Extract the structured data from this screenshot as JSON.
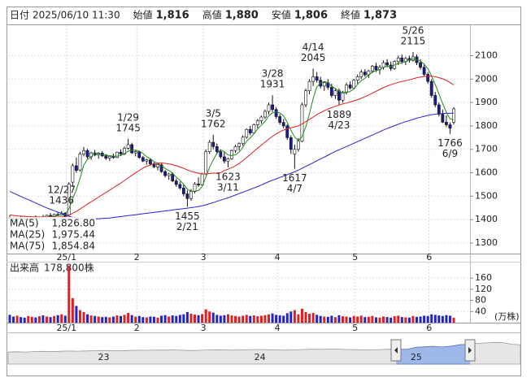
{
  "header": [
    {
      "label": "日付",
      "value": "2025/06/10 11:30"
    },
    {
      "label": "始値",
      "value": "1,816"
    },
    {
      "label": "高値",
      "value": "1,880",
      "color": "#d40000"
    },
    {
      "label": "安値",
      "value": "1,806",
      "color": "#008000"
    },
    {
      "label": "終値",
      "value": "1,873"
    }
  ],
  "chart_data": {
    "type": "candlestick",
    "categories": [
      null,
      null,
      null,
      null,
      null,
      null,
      null,
      null,
      null,
      null,
      null,
      null,
      null,
      null,
      null,
      null,
      "25/1",
      null,
      null,
      null,
      null,
      null,
      null,
      null,
      null,
      null,
      null,
      null,
      null,
      null,
      null,
      null,
      null,
      null,
      null,
      "2",
      null,
      null,
      null,
      null,
      null,
      null,
      null,
      null,
      null,
      null,
      null,
      null,
      null,
      null,
      null,
      null,
      null,
      "3",
      null,
      null,
      null,
      null,
      null,
      null,
      null,
      null,
      null,
      null,
      null,
      null,
      null,
      null,
      null,
      null,
      null,
      null,
      null,
      "4",
      null,
      null,
      null,
      null,
      null,
      null,
      null,
      null,
      null,
      null,
      null,
      null,
      null,
      null,
      null,
      null,
      null,
      null,
      null,
      null,
      "5",
      null,
      null,
      null,
      null,
      null,
      null,
      null,
      null,
      null,
      null,
      null,
      null,
      null,
      null,
      null,
      null,
      null,
      null,
      null,
      "6",
      null,
      null,
      null,
      null,
      null,
      null
    ],
    "open": [
      1410,
      1405,
      1400,
      1408,
      1403,
      1398,
      1402,
      1410,
      1406,
      1412,
      1409,
      1418,
      1415,
      1422,
      1420,
      1428,
      1420,
      1560,
      1630,
      1612,
      1680,
      1695,
      1668,
      1685,
      1676,
      1684,
      1672,
      1662,
      1670,
      1665,
      1688,
      1680,
      1705,
      1720,
      1685,
      1690,
      1665,
      1650,
      1655,
      1638,
      1625,
      1635,
      1605,
      1588,
      1595,
      1565,
      1550,
      1535,
      1510,
      1490,
      1520,
      1552,
      1548,
      1595,
      1690,
      1730,
      1712,
      1690,
      1668,
      1650,
      1660,
      1695,
      1712,
      1725,
      1752,
      1785,
      1770,
      1805,
      1822,
      1838,
      1862,
      1890,
      1870,
      1840,
      1815,
      1800,
      1750,
      1680,
      1700,
      1735,
      1890,
      1950,
      1990,
      2010,
      1995,
      1970,
      1985,
      1965,
      1930,
      1950,
      1910,
      1945,
      1975,
      1962,
      1995,
      2010,
      2030,
      2018,
      2035,
      2055,
      2040,
      2050,
      2070,
      2060,
      2045,
      2075,
      2090,
      2075,
      2088,
      2080,
      2095,
      2070,
      2050,
      2020,
      1990,
      1930,
      1890,
      1850,
      1816,
      1805,
      1816
    ],
    "high": [
      1418,
      1412,
      1410,
      1415,
      1410,
      1406,
      1412,
      1418,
      1414,
      1420,
      1422,
      1428,
      1426,
      1430,
      1436,
      1432,
      1560,
      1640,
      1665,
      1690,
      1710,
      1702,
      1690,
      1698,
      1688,
      1692,
      1680,
      1675,
      1682,
      1690,
      1700,
      1712,
      1745,
      1728,
      1695,
      1694,
      1672,
      1660,
      1662,
      1645,
      1640,
      1640,
      1612,
      1600,
      1602,
      1575,
      1562,
      1550,
      1525,
      1530,
      1560,
      1580,
      1600,
      1700,
      1740,
      1762,
      1725,
      1700,
      1690,
      1665,
      1700,
      1720,
      1730,
      1760,
      1790,
      1800,
      1810,
      1830,
      1845,
      1870,
      1900,
      1931,
      1880,
      1850,
      1830,
      1808,
      1760,
      1720,
      1748,
      1900,
      1960,
      2000,
      2045,
      2030,
      2010,
      1990,
      2000,
      1980,
      1960,
      1960,
      1950,
      1985,
      1990,
      2000,
      2020,
      2040,
      2042,
      2040,
      2060,
      2070,
      2060,
      2080,
      2085,
      2075,
      2080,
      2100,
      2105,
      2095,
      2100,
      2115,
      2105,
      2085,
      2065,
      2030,
      2000,
      1945,
      1900,
      1870,
      1845,
      1815,
      1880
    ],
    "low": [
      1398,
      1395,
      1392,
      1400,
      1396,
      1390,
      1398,
      1404,
      1400,
      1406,
      1405,
      1412,
      1410,
      1416,
      1418,
      1410,
      1418,
      1540,
      1600,
      1605,
      1670,
      1660,
      1655,
      1670,
      1660,
      1668,
      1655,
      1650,
      1660,
      1662,
      1672,
      1676,
      1698,
      1680,
      1670,
      1660,
      1645,
      1635,
      1630,
      1620,
      1610,
      1600,
      1580,
      1570,
      1560,
      1540,
      1528,
      1500,
      1455,
      1480,
      1512,
      1540,
      1545,
      1590,
      1680,
      1700,
      1680,
      1660,
      1640,
      1623,
      1655,
      1685,
      1695,
      1715,
      1745,
      1760,
      1765,
      1790,
      1810,
      1830,
      1850,
      1860,
      1830,
      1805,
      1790,
      1740,
      1680,
      1617,
      1690,
      1730,
      1880,
      1935,
      1970,
      1985,
      1960,
      1950,
      1955,
      1920,
      1915,
      1889,
      1900,
      1935,
      1955,
      1958,
      1980,
      2000,
      2010,
      2005,
      2025,
      2030,
      2020,
      2040,
      2050,
      2035,
      2040,
      2060,
      2065,
      2060,
      2070,
      2075,
      2060,
      2040,
      2010,
      1980,
      1920,
      1880,
      1840,
      1812,
      1795,
      1766,
      1806
    ],
    "close": [
      1405,
      1400,
      1408,
      1403,
      1398,
      1402,
      1410,
      1406,
      1412,
      1409,
      1418,
      1415,
      1422,
      1420,
      1428,
      1414,
      1552,
      1630,
      1610,
      1680,
      1695,
      1668,
      1685,
      1676,
      1684,
      1672,
      1662,
      1670,
      1665,
      1688,
      1680,
      1705,
      1720,
      1685,
      1690,
      1665,
      1650,
      1655,
      1638,
      1625,
      1635,
      1605,
      1588,
      1595,
      1565,
      1550,
      1535,
      1510,
      1490,
      1520,
      1552,
      1548,
      1595,
      1690,
      1730,
      1712,
      1690,
      1668,
      1650,
      1660,
      1695,
      1712,
      1725,
      1752,
      1785,
      1770,
      1805,
      1822,
      1838,
      1862,
      1890,
      1870,
      1840,
      1815,
      1800,
      1750,
      1700,
      1700,
      1735,
      1890,
      1950,
      1990,
      2010,
      1995,
      1970,
      1985,
      1965,
      1930,
      1950,
      1910,
      1945,
      1975,
      1962,
      1995,
      2010,
      2030,
      2018,
      2035,
      2055,
      2040,
      2050,
      2070,
      2060,
      2045,
      2075,
      2090,
      2075,
      2088,
      2080,
      2095,
      2070,
      2050,
      2020,
      1990,
      1930,
      1890,
      1850,
      1816,
      1805,
      1790,
      1873
    ],
    "up_color": "#ffffff",
    "down_color": "#1c1c8c",
    "ylim": [
      1255,
      2230
    ],
    "yticks": [
      1300,
      1400,
      1500,
      1600,
      1700,
      1800,
      1900,
      2000,
      2100
    ],
    "grid": true,
    "series": [
      {
        "name": "MA(5)",
        "color": "#1e8a1e",
        "legend_value": "1,826.80",
        "values": [
          1408,
          1405,
          1406,
          1404,
          1403,
          1402,
          1404,
          1404,
          1406,
          1408,
          1411,
          1412,
          1415,
          1417,
          1421,
          1420,
          1447,
          1489,
          1527,
          1577,
          1633,
          1657,
          1668,
          1681,
          1682,
          1677,
          1676,
          1673,
          1671,
          1671,
          1673,
          1682,
          1692,
          1696,
          1696,
          1693,
          1682,
          1669,
          1660,
          1647,
          1641,
          1632,
          1618,
          1610,
          1598,
          1581,
          1567,
          1551,
          1530,
          1521,
          1521,
          1524,
          1541,
          1581,
          1623,
          1655,
          1683,
          1698,
          1690,
          1676,
          1673,
          1677,
          1688,
          1709,
          1734,
          1749,
          1767,
          1787,
          1804,
          1819,
          1843,
          1856,
          1860,
          1855,
          1843,
          1815,
          1781,
          1753,
          1737,
          1755,
          1795,
          1853,
          1917,
          1967,
          1983,
          1990,
          1985,
          1969,
          1960,
          1948,
          1940,
          1942,
          1948,
          1957,
          1977,
          1994,
          2003,
          2018,
          2030,
          2036,
          2040,
          2050,
          2055,
          2053,
          2060,
          2068,
          2069,
          2075,
          2082,
          2086,
          2082,
          2077,
          2063,
          2045,
          2013,
          1976,
          1936,
          1895,
          1858,
          1830,
          1826.8
        ]
      },
      {
        "name": "MA(25)",
        "color": "#e02020",
        "legend_value": "1,975.44",
        "values": [
          1420,
          1418,
          1416,
          1415,
          1414,
          1413,
          1412,
          1412,
          1411,
          1411,
          1411,
          1411,
          1411,
          1411,
          1412,
          1412,
          1418,
          1427,
          1435,
          1445,
          1456,
          1466,
          1476,
          1486,
          1496,
          1506,
          1516,
          1526,
          1536,
          1546,
          1556,
          1567,
          1578,
          1589,
          1600,
          1610,
          1620,
          1628,
          1634,
          1638,
          1641,
          1643,
          1640,
          1638,
          1635,
          1630,
          1625,
          1619,
          1612,
          1606,
          1602,
          1598,
          1595,
          1595,
          1597,
          1598,
          1599,
          1600,
          1610,
          1615,
          1622,
          1630,
          1640,
          1652,
          1665,
          1678,
          1692,
          1705,
          1718,
          1731,
          1744,
          1756,
          1766,
          1775,
          1782,
          1788,
          1792,
          1796,
          1800,
          1808,
          1818,
          1828,
          1838,
          1848,
          1857,
          1865,
          1872,
          1878,
          1884,
          1889,
          1894,
          1898,
          1902,
          1907,
          1912,
          1918,
          1925,
          1932,
          1940,
          1948,
          1956,
          1964,
          1970,
          1976,
          1981,
          1986,
          1990,
          1993,
          1997,
          2001,
          2006,
          2009,
          2011,
          2012,
          2012,
          2010,
          2006,
          2001,
          1994,
          1985,
          1975.44
        ]
      },
      {
        "name": "MA(75)",
        "color": "#2424d0",
        "legend_value": "1,854.84",
        "values": [
          1520,
          1513,
          1506,
          1499,
          1492,
          1485,
          1478,
          1471,
          1464,
          1457,
          1450,
          1444,
          1438,
          1432,
          1426,
          1420,
          1414,
          1410,
          1407,
          1405,
          1404,
          1403,
          1403,
          1403,
          1404,
          1405,
          1406,
          1407,
          1409,
          1411,
          1413,
          1415,
          1417,
          1419,
          1421,
          1423,
          1425,
          1427,
          1429,
          1431,
          1433,
          1435,
          1437,
          1439,
          1441,
          1443,
          1445,
          1447,
          1449,
          1451,
          1453,
          1456,
          1459,
          1463,
          1468,
          1473,
          1478,
          1483,
          1488,
          1493,
          1499,
          1505,
          1511,
          1517,
          1523,
          1529,
          1535,
          1541,
          1548,
          1555,
          1562,
          1568,
          1574,
          1580,
          1586,
          1592,
          1598,
          1604,
          1611,
          1619,
          1627,
          1635,
          1643,
          1651,
          1659,
          1667,
          1675,
          1683,
          1691,
          1698,
          1705,
          1712,
          1719,
          1726,
          1733,
          1740,
          1747,
          1754,
          1761,
          1768,
          1775,
          1782,
          1789,
          1795,
          1801,
          1807,
          1813,
          1818,
          1823,
          1828,
          1833,
          1837,
          1841,
          1845,
          1848,
          1850,
          1852,
          1853,
          1854,
          1854,
          1854.84
        ]
      }
    ],
    "annotations": [
      {
        "date": "12/27",
        "value": 1436
      },
      {
        "date": "1/29",
        "value": 1745
      },
      {
        "date": "2/21",
        "value": 1455
      },
      {
        "date": "3/5",
        "value": 1762
      },
      {
        "date": "3/11",
        "value": 1623
      },
      {
        "date": "3/28",
        "value": 1931
      },
      {
        "date": "4/7",
        "value": 1617
      },
      {
        "date": "4/14",
        "value": 2045
      },
      {
        "date": "4/23",
        "value": 1889
      },
      {
        "date": "5/26",
        "value": 2115
      },
      {
        "date": "6/9",
        "value": 1766
      }
    ],
    "volume": {
      "title": "出来高",
      "last_label": "178,800株",
      "unit": "(万株)",
      "up_color": "#e02020",
      "down_color": "#2424c0",
      "ylim": [
        0,
        210
      ],
      "yticks": [
        40,
        80,
        120,
        160
      ],
      "values": [
        28,
        22,
        25,
        20,
        18,
        24,
        21,
        19,
        23,
        26,
        22,
        20,
        24,
        27,
        30,
        25,
        205,
        88,
        60,
        45,
        38,
        30,
        26,
        24,
        22,
        20,
        21,
        19,
        22,
        26,
        24,
        28,
        35,
        27,
        22,
        24,
        20,
        19,
        22,
        21,
        18,
        25,
        27,
        22,
        26,
        24,
        28,
        30,
        38,
        32,
        29,
        27,
        31,
        48,
        40,
        36,
        28,
        25,
        27,
        30,
        26,
        24,
        22,
        25,
        28,
        24,
        26,
        23,
        25,
        27,
        30,
        33,
        28,
        26,
        25,
        34,
        40,
        45,
        30,
        50,
        38,
        32,
        35,
        28,
        24,
        22,
        21,
        25,
        20,
        27,
        23,
        22,
        19,
        24,
        22,
        25,
        20,
        21,
        24,
        19,
        18,
        22,
        20,
        18,
        23,
        25,
        20,
        19,
        18,
        24,
        21,
        22,
        25,
        24,
        30,
        28,
        26,
        24,
        27,
        25,
        17.88
      ]
    },
    "navigator": {
      "ylim": [
        0,
        2800
      ],
      "categories": [
        null,
        null,
        null,
        null,
        null,
        null,
        null,
        null,
        null,
        null,
        null,
        "23",
        null,
        null,
        null,
        null,
        null,
        null,
        null,
        null,
        null,
        null,
        null,
        null,
        null,
        null,
        null,
        null,
        null,
        "24",
        null,
        null,
        null,
        null,
        null,
        null,
        null,
        null,
        null,
        null,
        null,
        null,
        null,
        null,
        null,
        null,
        null,
        "25",
        null,
        null,
        null,
        null,
        null,
        null,
        null,
        null,
        null,
        null,
        null,
        null
      ],
      "values": [
        1150,
        1180,
        1160,
        1200,
        1220,
        1190,
        1230,
        1250,
        1240,
        1260,
        1280,
        1300,
        1290,
        1270,
        1310,
        1330,
        1320,
        1350,
        1340,
        1360,
        1330,
        1300,
        1320,
        1350,
        1380,
        1360,
        1340,
        1370,
        1390,
        1400,
        1380,
        1360,
        1340,
        1370,
        1400,
        1420,
        1410,
        1440,
        1430,
        1400,
        1380,
        1360,
        1350,
        1400,
        1420,
        1410,
        1430,
        1600,
        1660,
        1700,
        1630,
        1720,
        1850,
        1900,
        1980,
        2030,
        2080,
        2060,
        1900,
        1850
      ]
    }
  }
}
